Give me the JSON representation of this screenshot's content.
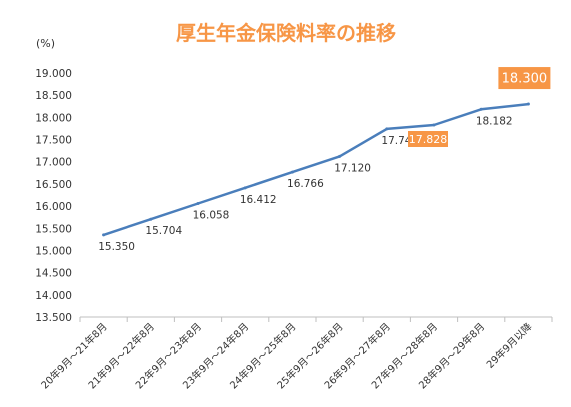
{
  "chart_data": {
    "type": "line",
    "title": "厚生年金保険料率の推移",
    "xlabel": "",
    "ylabel": "(%)",
    "categories": [
      "20年9月～21年8月",
      "21年9月～22年8月",
      "22年9月～23年8月",
      "23年9月～24年8月",
      "24年9月～25年8月",
      "25年9月～26年8月",
      "26年9月～27年8月",
      "27年9月～28年8月",
      "28年9月～29年8月",
      "29年9月以降"
    ],
    "series": [
      {
        "values": [
          15.35,
          15.704,
          16.058,
          16.412,
          16.766,
          17.12,
          17.74,
          17.828,
          18.182,
          18.3
        ]
      }
    ],
    "data_labels": [
      "15.350",
      "15.704",
      "16.058",
      "16.412",
      "16.766",
      "17.120",
      "17.740",
      "17.828",
      "18.182",
      "18.300"
    ],
    "highlighted_labels": [
      "17.828",
      "18.300"
    ],
    "y_ticks": [
      "13.500",
      "14.000",
      "14.500",
      "15.000",
      "15.500",
      "16.000",
      "16.500",
      "17.000",
      "17.500",
      "18.000",
      "18.500",
      "19.000"
    ],
    "ylim": [
      13.5,
      19.0
    ],
    "grid": false,
    "legend": "none"
  },
  "colors": {
    "line": "#4a7ebb",
    "title": "#f79646",
    "highlight_box": "#f79646",
    "highlight_text": "#ffffff",
    "axis": "#bfbfbf",
    "text": "#333333"
  }
}
